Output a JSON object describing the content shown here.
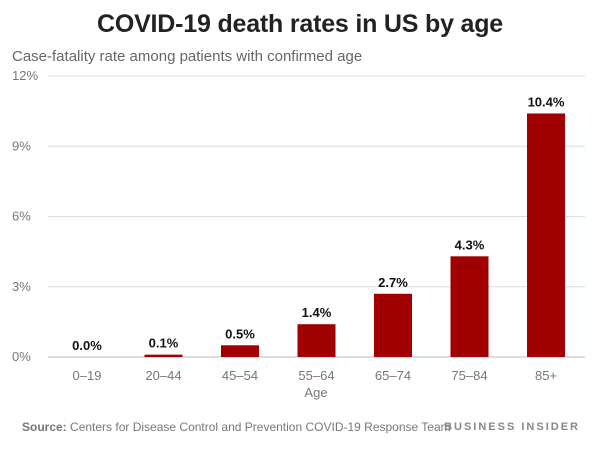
{
  "chart_data": {
    "type": "bar",
    "title": "COVID-19 death rates in US by age",
    "subtitle": "Case-fatality rate among patients with confirmed age",
    "categories": [
      "0–19",
      "20–44",
      "45–54",
      "55–64",
      "65–74",
      "75–84",
      "85+"
    ],
    "values": [
      0.0,
      0.1,
      0.5,
      1.4,
      2.7,
      4.3,
      10.4
    ],
    "data_labels": [
      "0.0%",
      "0.1%",
      "0.5%",
      "1.4%",
      "2.7%",
      "4.3%",
      "10.4%"
    ],
    "xlabel": "Age",
    "ylabel": "",
    "ylim": [
      0,
      12
    ],
    "yticks": [
      0,
      3,
      6,
      9,
      12
    ],
    "ytick_labels": [
      "0%",
      "3%",
      "6%",
      "9%",
      "12%"
    ],
    "grid": true,
    "bar_color": "#a00000"
  },
  "footer": {
    "source_label": "Source:",
    "source_text": " Centers for Disease Control and Prevention COVID-19 Response Team",
    "brand": "BUSINESS INSIDER"
  }
}
